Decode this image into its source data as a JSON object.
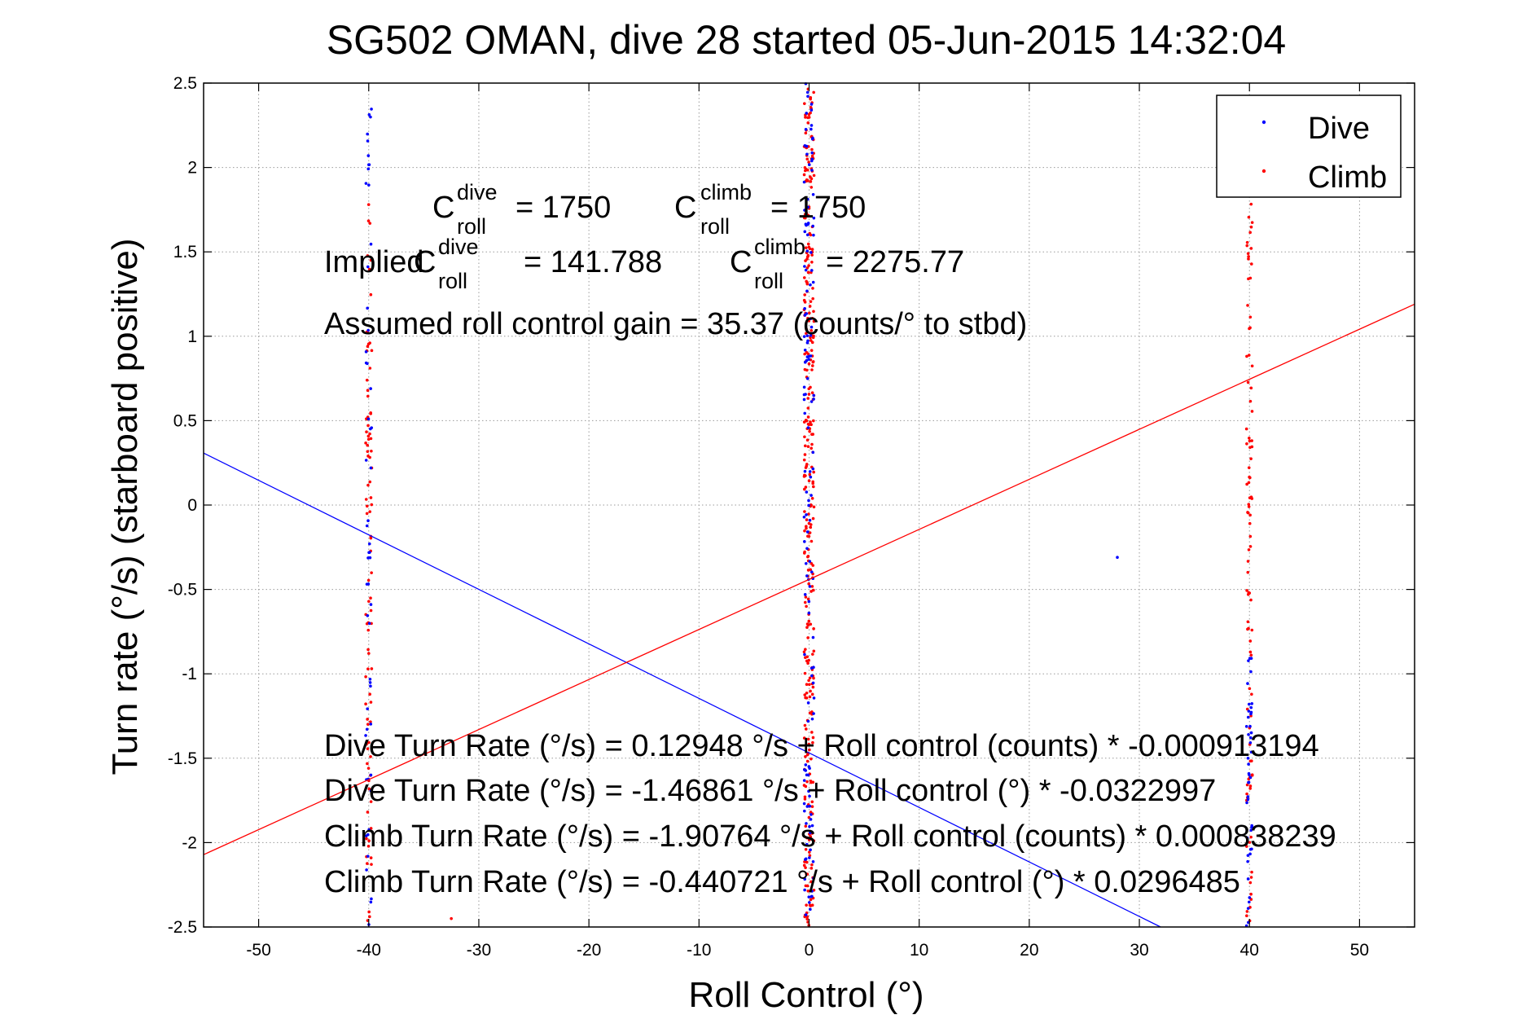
{
  "chart_data": {
    "type": "scatter",
    "title": "SG502 OMAN, dive 28 started 05-Jun-2015 14:32:04",
    "xlabel": "Roll Control (°)",
    "ylabel": "Turn rate (°/s)  (starboard positive)",
    "xlim": [
      -55,
      55
    ],
    "ylim": [
      -2.5,
      2.5
    ],
    "xticks": [
      -50,
      -40,
      -30,
      -20,
      -10,
      0,
      10,
      20,
      30,
      40,
      50
    ],
    "yticks": [
      -2.5,
      -2,
      -1.5,
      -1,
      -0.5,
      0,
      0.5,
      1,
      1.5,
      2,
      2.5
    ],
    "grid": true,
    "legend_position": "top-right",
    "colors": {
      "dive": "#0000ff",
      "climb": "#ff0000"
    },
    "series": [
      {
        "name": "Dive",
        "color": "#0000ff",
        "clusters": [
          {
            "x": -40,
            "y_range": [
              -2.5,
              2.5
            ]
          },
          {
            "x": 0,
            "y_range": [
              -2.5,
              2.5
            ]
          },
          {
            "x": 40,
            "y_range": [
              -2.5,
              -0.9
            ]
          }
        ],
        "isolated_points": [
          [
            28,
            -0.31
          ]
        ],
        "fit": {
          "intercept": -1.46861,
          "slope": -0.0322997
        }
      },
      {
        "name": "Climb",
        "color": "#ff0000",
        "clusters": [
          {
            "x": -40,
            "y_range": [
              -2.5,
              1.8
            ]
          },
          {
            "x": 0,
            "y_range": [
              -2.5,
              2.5
            ]
          },
          {
            "x": 40,
            "y_range": [
              -2.5,
              1.8
            ]
          }
        ],
        "isolated_points": [
          [
            -32.5,
            -2.45
          ]
        ],
        "fit": {
          "intercept": -0.440721,
          "slope": 0.0296485
        }
      }
    ],
    "annotations": {
      "c_roll_dive": {
        "base": "C",
        "sup": "dive",
        "sub": "roll",
        "value": "= 1750"
      },
      "c_roll_climb": {
        "base": "C",
        "sup": "climb",
        "sub": "roll",
        "value": "= 1750"
      },
      "implied_prefix": "Implied",
      "implied_dive": {
        "base": "C",
        "sup": "dive",
        "sub": "roll",
        "value": "= 141.788"
      },
      "implied_climb": {
        "base": "C",
        "sup": "climb",
        "sub": "roll",
        "value": "= 2275.77"
      },
      "gain": "Assumed roll control gain = 35.37 (counts/° to stbd)",
      "fit_lines": [
        "Dive Turn Rate (°/s) = 0.12948 °/s + Roll control (counts) * -0.000913194",
        "Dive Turn Rate (°/s) = -1.46861 °/s + Roll control (°) * -0.0322997",
        "Climb Turn Rate (°/s) = -1.90764 °/s + Roll control (counts) * 0.000838239",
        "Climb Turn Rate (°/s) = -0.440721 °/s + Roll control (°) * 0.0296485"
      ]
    }
  }
}
